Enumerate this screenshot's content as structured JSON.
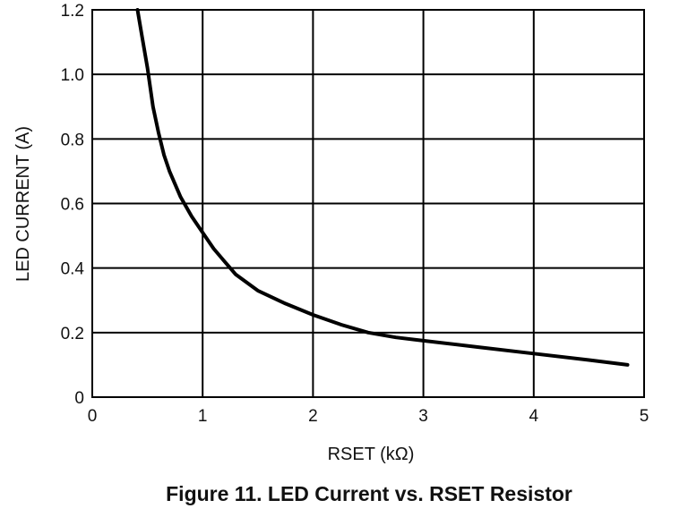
{
  "chart_data": {
    "type": "line",
    "title": "Figure 11. LED Current vs. RSET Resistor",
    "xlabel": "RSET (kΩ)",
    "ylabel": "LED CURRENT (A)",
    "xlim": [
      0,
      5
    ],
    "ylim": [
      0,
      1.2
    ],
    "grid": true,
    "x_ticks": [
      0,
      1,
      2,
      3,
      4,
      5
    ],
    "x_tick_labels": [
      "0",
      "1",
      "2",
      "3",
      "4",
      "5"
    ],
    "y_ticks": [
      0,
      0.2,
      0.4,
      0.6,
      0.8,
      1.0,
      1.2
    ],
    "y_tick_labels": [
      "0",
      "0.2",
      "0.4",
      "0.6",
      "0.8",
      "1.0",
      "1.2"
    ],
    "series": [
      {
        "color": "#000000",
        "x": [
          0.41,
          0.45,
          0.5,
          0.55,
          0.6,
          0.65,
          0.7,
          0.8,
          0.9,
          1.0,
          1.1,
          1.2,
          1.3,
          1.5,
          1.75,
          2.0,
          2.25,
          2.5,
          2.75,
          3.0,
          3.5,
          4.0,
          4.5,
          4.85
        ],
        "y": [
          1.2,
          1.12,
          1.02,
          0.9,
          0.82,
          0.75,
          0.7,
          0.62,
          0.56,
          0.51,
          0.46,
          0.42,
          0.38,
          0.33,
          0.29,
          0.255,
          0.225,
          0.2,
          0.185,
          0.175,
          0.155,
          0.135,
          0.115,
          0.1
        ]
      }
    ]
  }
}
